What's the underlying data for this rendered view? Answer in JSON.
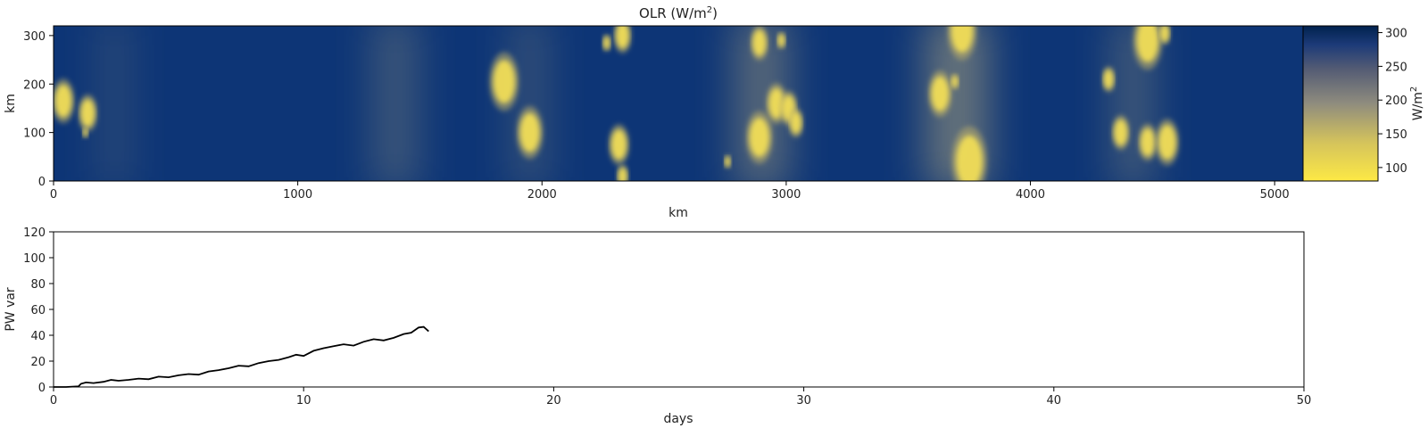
{
  "chart_data": [
    {
      "type": "heatmap",
      "title": "OLR (W/m",
      "title_superscript": "2",
      "title_close": ")",
      "xlabel": "km",
      "ylabel": "km",
      "xlim": [
        0,
        5120
      ],
      "ylim": [
        0,
        320
      ],
      "xticks": [
        "0",
        "1000",
        "2000",
        "3000",
        "4000",
        "5000"
      ],
      "yticks": [
        "0",
        "100",
        "200",
        "300"
      ],
      "colorbar": {
        "label": "W/m",
        "label_superscript": "2",
        "range": [
          80,
          310
        ],
        "ticks": [
          "100",
          "150",
          "200",
          "250",
          "300"
        ],
        "colormap": "cividis",
        "low_color": "#fde945",
        "mid_color": "#7c7b78",
        "high_color": "#00224e"
      },
      "clouds": [
        {
          "x": 40,
          "y": 165,
          "r": 38
        },
        {
          "x": 140,
          "y": 140,
          "r": 32
        },
        {
          "x": 130,
          "y": 100,
          "r": 10
        },
        {
          "x": 1845,
          "y": 205,
          "r": 50
        },
        {
          "x": 1950,
          "y": 100,
          "r": 45
        },
        {
          "x": 2265,
          "y": 285,
          "r": 15
        },
        {
          "x": 2330,
          "y": 300,
          "r": 30
        },
        {
          "x": 2315,
          "y": 75,
          "r": 35
        },
        {
          "x": 2330,
          "y": 10,
          "r": 20
        },
        {
          "x": 2890,
          "y": 285,
          "r": 30
        },
        {
          "x": 2980,
          "y": 290,
          "r": 15
        },
        {
          "x": 2960,
          "y": 160,
          "r": 35
        },
        {
          "x": 3010,
          "y": 150,
          "r": 30
        },
        {
          "x": 3040,
          "y": 120,
          "r": 25
        },
        {
          "x": 2890,
          "y": 90,
          "r": 45
        },
        {
          "x": 2760,
          "y": 40,
          "r": 12
        },
        {
          "x": 3720,
          "y": 310,
          "r": 50
        },
        {
          "x": 3630,
          "y": 180,
          "r": 40
        },
        {
          "x": 3750,
          "y": 40,
          "r": 60
        },
        {
          "x": 3690,
          "y": 205,
          "r": 14
        },
        {
          "x": 4320,
          "y": 210,
          "r": 22
        },
        {
          "x": 4480,
          "y": 290,
          "r": 50
        },
        {
          "x": 4550,
          "y": 305,
          "r": 20
        },
        {
          "x": 4370,
          "y": 100,
          "r": 30
        },
        {
          "x": 4480,
          "y": 80,
          "r": 32
        },
        {
          "x": 4560,
          "y": 80,
          "r": 40
        }
      ],
      "bands": [
        {
          "x": 250,
          "w": 120,
          "a": 0.25
        },
        {
          "x": 1400,
          "w": 180,
          "a": 0.4
        },
        {
          "x": 1950,
          "w": 140,
          "a": 0.35
        },
        {
          "x": 2900,
          "w": 220,
          "a": 0.6
        },
        {
          "x": 3700,
          "w": 260,
          "a": 0.7
        },
        {
          "x": 4420,
          "w": 160,
          "a": 0.45
        }
      ]
    },
    {
      "type": "line",
      "xlabel": "days",
      "ylabel": "PW var",
      "xlim": [
        0,
        50
      ],
      "ylim": [
        0,
        120
      ],
      "xticks": [
        "0",
        "10",
        "20",
        "30",
        "40",
        "50"
      ],
      "yticks": [
        "0",
        "20",
        "40",
        "60",
        "80",
        "100",
        "120"
      ],
      "line_color": "#000000",
      "x": [
        0,
        0.5,
        1.0,
        1.1,
        1.3,
        1.6,
        2.0,
        2.3,
        2.6,
        3.0,
        3.4,
        3.8,
        4.2,
        4.6,
        5.0,
        5.4,
        5.8,
        6.2,
        6.6,
        7.0,
        7.4,
        7.8,
        8.2,
        8.6,
        9.0,
        9.4,
        9.7,
        10.0,
        10.4,
        10.8,
        11.2,
        11.6,
        12.0,
        12.4,
        12.8,
        13.2,
        13.6,
        14.0,
        14.3,
        14.6,
        14.8,
        15.0
      ],
      "y": [
        0,
        0,
        0.5,
        2.5,
        3.5,
        3.0,
        4.0,
        5.5,
        4.8,
        5.5,
        6.5,
        6.0,
        8.0,
        7.5,
        9.0,
        10.0,
        9.5,
        12.0,
        13.0,
        14.5,
        16.5,
        16.0,
        18.5,
        20.0,
        21.0,
        23.0,
        25.0,
        24.0,
        28.0,
        30.0,
        31.5,
        33.0,
        32.0,
        35.0,
        37.0,
        36.0,
        38.0,
        41.0,
        42.0,
        46.0,
        46.5,
        43.0
      ]
    }
  ]
}
